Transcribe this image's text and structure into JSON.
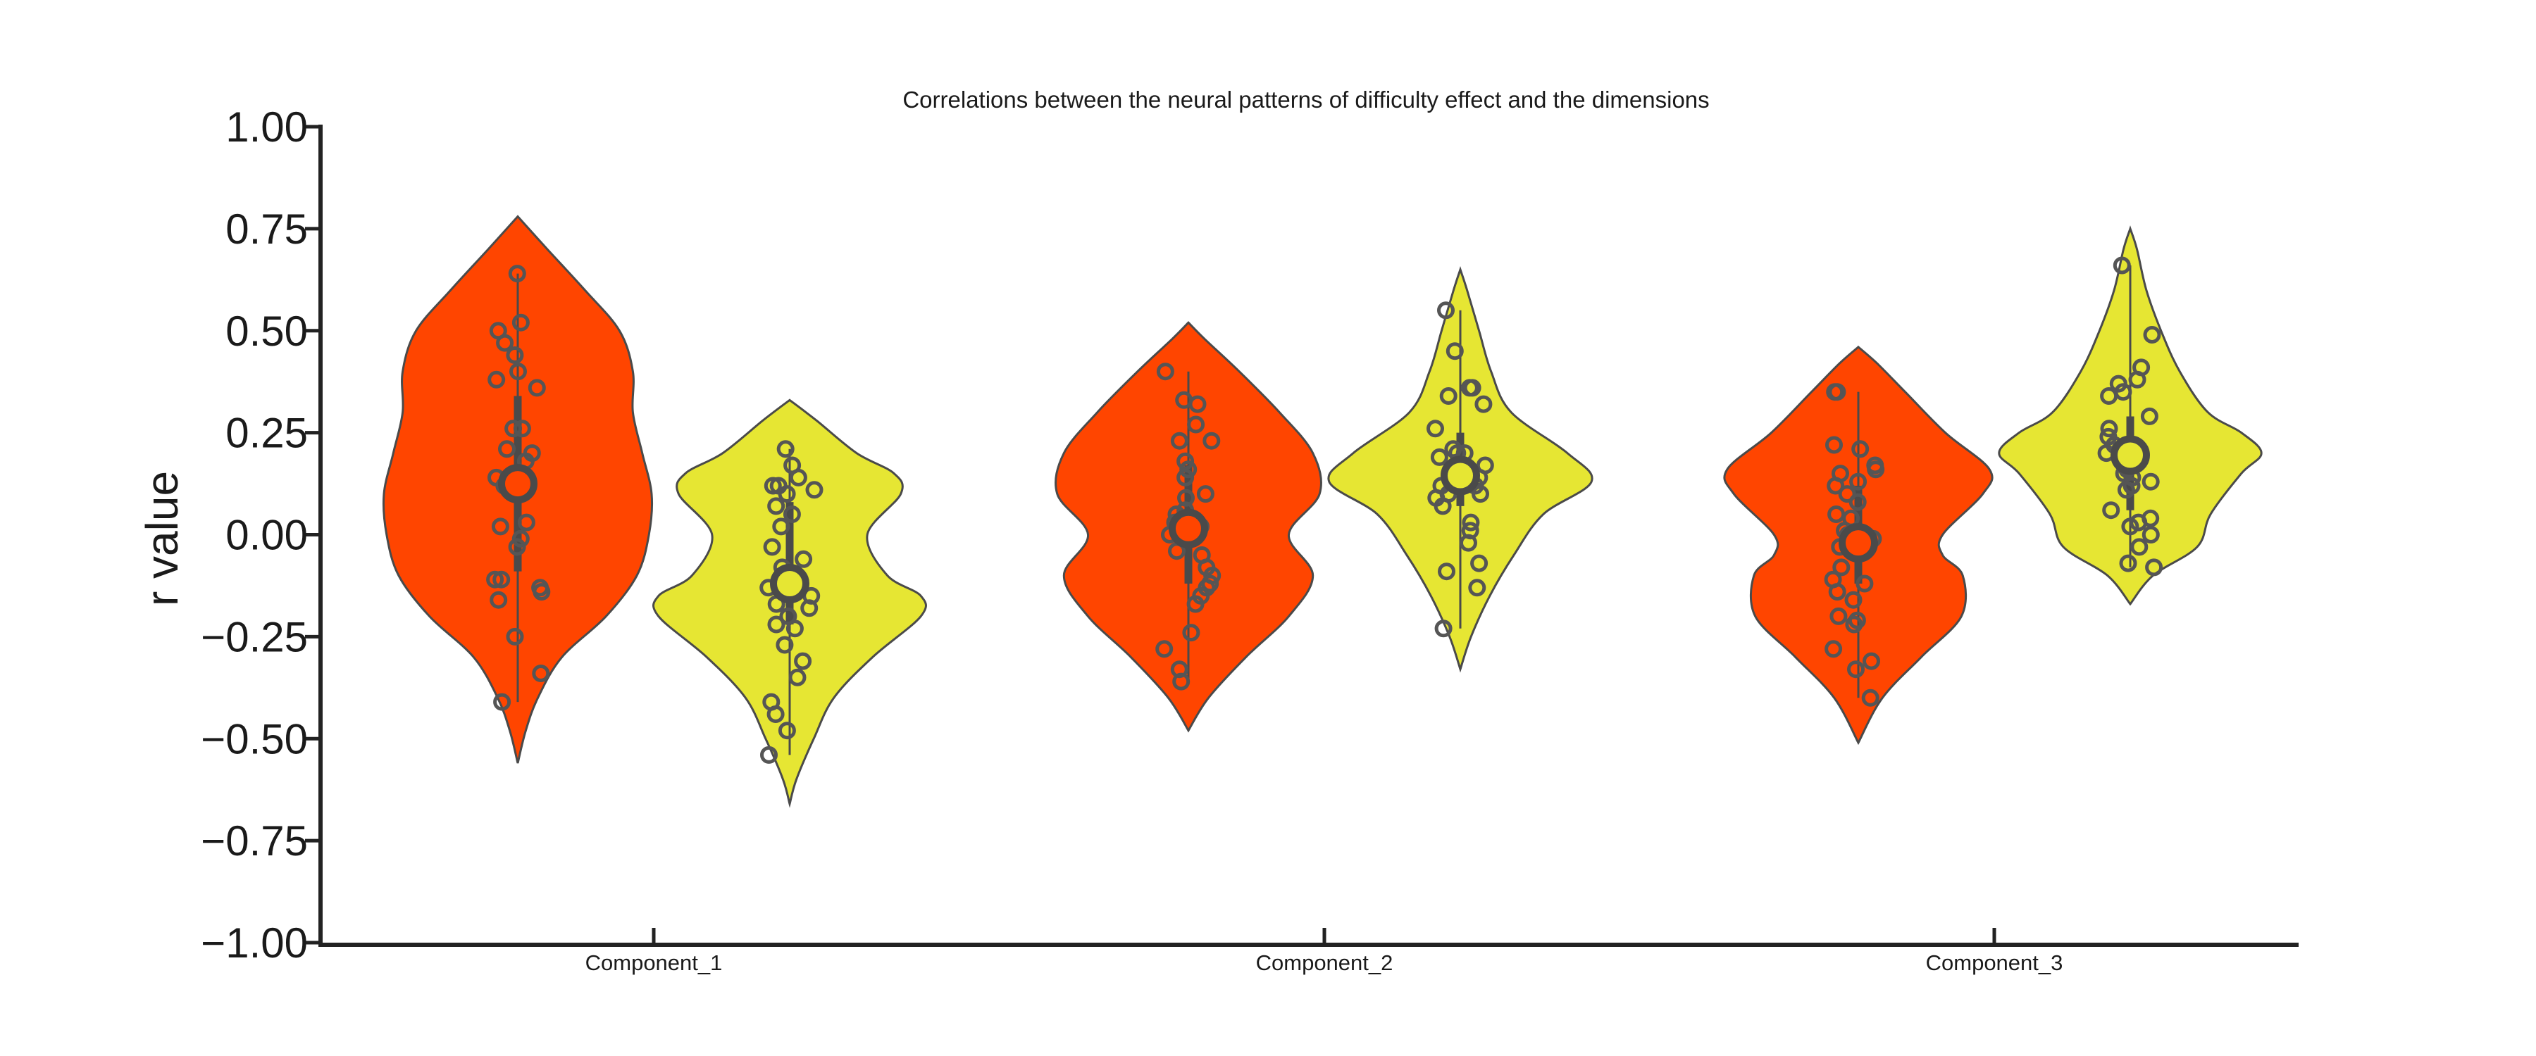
{
  "chart_data": {
    "type": "violin",
    "title": "Correlations between the neural patterns of difficulty effect and the dimensions",
    "ylabel": "r value",
    "xlabel": "",
    "ylim": [
      -1.0,
      1.0
    ],
    "yticks": [
      1.0,
      0.75,
      0.5,
      0.25,
      0.0,
      -0.25,
      -0.5,
      -0.75,
      -1.0
    ],
    "ytick_labels": [
      "1.00",
      "0.75",
      "0.50",
      "0.25",
      "0.00",
      "−0.25",
      "−0.50",
      "−0.75",
      "−1.00"
    ],
    "categories": [
      "Component_1",
      "Component_2",
      "Component_3"
    ],
    "colors": {
      "first": "#FF4500",
      "second": "#E6E633",
      "outline": "#4a4a4a",
      "points": "#555555"
    },
    "grid": false,
    "legend": "none",
    "groups": [
      {
        "category": "Component_1",
        "split": "first",
        "color": "#FF4500",
        "min": -0.56,
        "max": 0.78,
        "density": [
          [
            -0.56,
            0.0
          ],
          [
            -0.48,
            0.06
          ],
          [
            -0.4,
            0.15
          ],
          [
            -0.3,
            0.33
          ],
          [
            -0.2,
            0.66
          ],
          [
            -0.1,
            0.89
          ],
          [
            0.0,
            0.98
          ],
          [
            0.1,
            1.0
          ],
          [
            0.2,
            0.93
          ],
          [
            0.3,
            0.86
          ],
          [
            0.4,
            0.86
          ],
          [
            0.5,
            0.76
          ],
          [
            0.6,
            0.5
          ],
          [
            0.7,
            0.22
          ],
          [
            0.78,
            0.0
          ]
        ],
        "median": 0.125,
        "q1": -0.09,
        "q3": 0.34,
        "whisker_low": -0.41,
        "whisker_high": 0.64,
        "points": [
          0.64,
          0.52,
          0.5,
          0.47,
          0.44,
          0.4,
          0.38,
          0.36,
          0.26,
          0.26,
          0.21,
          0.2,
          0.18,
          0.14,
          0.13,
          0.12,
          0.03,
          0.02,
          -0.01,
          -0.03,
          -0.11,
          -0.11,
          -0.13,
          -0.14,
          -0.16,
          -0.25,
          -0.34,
          -0.41
        ]
      },
      {
        "category": "Component_1",
        "split": "second",
        "color": "#E6E633",
        "min": -0.66,
        "max": 0.33,
        "density": [
          [
            -0.66,
            0.0
          ],
          [
            -0.6,
            0.05
          ],
          [
            -0.5,
            0.18
          ],
          [
            -0.4,
            0.33
          ],
          [
            -0.3,
            0.62
          ],
          [
            -0.2,
            0.98
          ],
          [
            -0.15,
            0.98
          ],
          [
            -0.1,
            0.73
          ],
          [
            0.0,
            0.58
          ],
          [
            0.1,
            0.83
          ],
          [
            0.15,
            0.78
          ],
          [
            0.2,
            0.5
          ],
          [
            0.28,
            0.2
          ],
          [
            0.33,
            0.0
          ]
        ],
        "median": -0.12,
        "q1": -0.22,
        "q3": 0.08,
        "whisker_low": -0.54,
        "whisker_high": 0.21,
        "points": [
          0.21,
          0.17,
          0.14,
          0.12,
          0.12,
          0.11,
          0.1,
          0.07,
          0.05,
          0.02,
          -0.03,
          -0.06,
          -0.08,
          -0.1,
          -0.13,
          -0.15,
          -0.17,
          -0.18,
          -0.2,
          -0.22,
          -0.23,
          -0.27,
          -0.31,
          -0.35,
          -0.41,
          -0.44,
          -0.48,
          -0.54
        ]
      },
      {
        "category": "Component_2",
        "split": "first",
        "color": "#FF4500",
        "min": -0.48,
        "max": 0.52,
        "density": [
          [
            -0.48,
            0.0
          ],
          [
            -0.4,
            0.15
          ],
          [
            -0.3,
            0.43
          ],
          [
            -0.2,
            0.75
          ],
          [
            -0.1,
            0.93
          ],
          [
            0.0,
            0.75
          ],
          [
            0.1,
            0.98
          ],
          [
            0.2,
            0.93
          ],
          [
            0.3,
            0.68
          ],
          [
            0.4,
            0.38
          ],
          [
            0.48,
            0.12
          ],
          [
            0.52,
            0.0
          ]
        ],
        "median": 0.015,
        "q1": -0.12,
        "q3": 0.17,
        "whisker_low": -0.36,
        "whisker_high": 0.4,
        "points": [
          0.4,
          0.33,
          0.32,
          0.27,
          0.23,
          0.23,
          0.18,
          0.16,
          0.14,
          0.1,
          0.09,
          0.06,
          0.05,
          0.03,
          0.02,
          0.0,
          -0.04,
          -0.05,
          -0.08,
          -0.1,
          -0.12,
          -0.13,
          -0.15,
          -0.17,
          -0.24,
          -0.28,
          -0.33,
          -0.36
        ]
      },
      {
        "category": "Component_2",
        "split": "second",
        "color": "#E6E633",
        "min": -0.33,
        "max": 0.65,
        "density": [
          [
            -0.33,
            0.0
          ],
          [
            -0.25,
            0.08
          ],
          [
            -0.15,
            0.22
          ],
          [
            -0.05,
            0.4
          ],
          [
            0.05,
            0.62
          ],
          [
            0.13,
            0.98
          ],
          [
            0.2,
            0.8
          ],
          [
            0.3,
            0.38
          ],
          [
            0.4,
            0.23
          ],
          [
            0.5,
            0.14
          ],
          [
            0.6,
            0.05
          ],
          [
            0.65,
            0.0
          ]
        ],
        "median": 0.145,
        "q1": 0.07,
        "q3": 0.25,
        "whisker_low": -0.23,
        "whisker_high": 0.55,
        "points": [
          0.55,
          0.45,
          0.36,
          0.36,
          0.34,
          0.32,
          0.26,
          0.21,
          0.2,
          0.2,
          0.19,
          0.17,
          0.15,
          0.14,
          0.13,
          0.13,
          0.12,
          0.12,
          0.1,
          0.1,
          0.09,
          0.07,
          0.03,
          0.01,
          -0.02,
          -0.07,
          -0.09,
          -0.13,
          -0.23
        ]
      },
      {
        "category": "Component_3",
        "split": "first",
        "color": "#FF4500",
        "min": -0.51,
        "max": 0.46,
        "density": [
          [
            -0.51,
            0.0
          ],
          [
            -0.4,
            0.18
          ],
          [
            -0.3,
            0.47
          ],
          [
            -0.2,
            0.77
          ],
          [
            -0.1,
            0.78
          ],
          [
            -0.05,
            0.63
          ],
          [
            0.0,
            0.63
          ],
          [
            0.1,
            0.93
          ],
          [
            0.16,
            0.98
          ],
          [
            0.25,
            0.65
          ],
          [
            0.35,
            0.35
          ],
          [
            0.42,
            0.14
          ],
          [
            0.46,
            0.0
          ]
        ],
        "median": -0.02,
        "q1": -0.12,
        "q3": 0.12,
        "whisker_low": -0.4,
        "whisker_high": 0.35,
        "points": [
          0.35,
          0.35,
          0.22,
          0.21,
          0.17,
          0.16,
          0.15,
          0.13,
          0.12,
          0.1,
          0.08,
          0.05,
          0.04,
          0.01,
          0.0,
          -0.01,
          -0.03,
          -0.08,
          -0.11,
          -0.12,
          -0.14,
          -0.16,
          -0.2,
          -0.21,
          -0.22,
          -0.28,
          -0.31,
          -0.33,
          -0.4
        ]
      },
      {
        "category": "Component_3",
        "split": "second",
        "color": "#E6E633",
        "min": -0.17,
        "max": 0.75,
        "density": [
          [
            -0.17,
            0.0
          ],
          [
            -0.1,
            0.17
          ],
          [
            -0.03,
            0.5
          ],
          [
            0.05,
            0.6
          ],
          [
            0.15,
            0.83
          ],
          [
            0.2,
            0.98
          ],
          [
            0.25,
            0.83
          ],
          [
            0.3,
            0.58
          ],
          [
            0.4,
            0.37
          ],
          [
            0.5,
            0.23
          ],
          [
            0.6,
            0.12
          ],
          [
            0.7,
            0.05
          ],
          [
            0.75,
            0.0
          ]
        ],
        "median": 0.195,
        "q1": 0.06,
        "q3": 0.29,
        "whisker_low": -0.08,
        "whisker_high": 0.66,
        "points": [
          0.66,
          0.49,
          0.41,
          0.38,
          0.37,
          0.35,
          0.34,
          0.29,
          0.26,
          0.24,
          0.22,
          0.21,
          0.2,
          0.19,
          0.16,
          0.15,
          0.14,
          0.13,
          0.12,
          0.11,
          0.06,
          0.04,
          0.03,
          0.02,
          0.0,
          -0.03,
          -0.07,
          -0.08
        ]
      }
    ]
  }
}
